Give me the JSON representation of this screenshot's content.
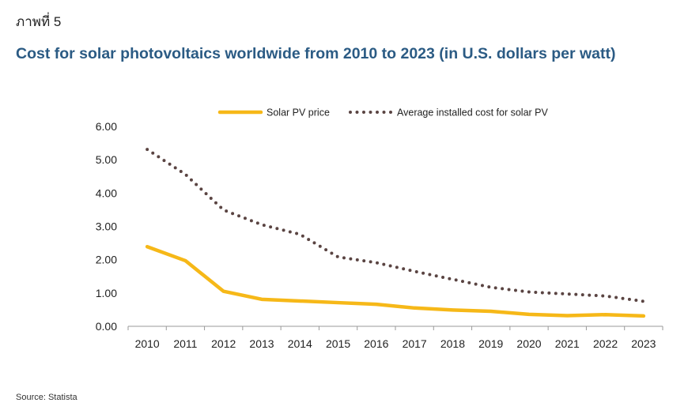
{
  "figure_label": "ภาพที่ 5",
  "title": "Cost for solar photovoltaics worldwide from 2010 to 2023 (in U.S. dollars per watt)",
  "source": "Source: Statista",
  "colors": {
    "title": "#2b5b84",
    "solar_pv_price": "#f6b818",
    "installed_cost": "#5a4442"
  },
  "chart_data": {
    "type": "line",
    "title": "Cost for solar photovoltaics worldwide from 2010 to 2023 (in U.S. dollars per watt)",
    "xlabel": "",
    "ylabel": "",
    "x": [
      "2010",
      "2011",
      "2012",
      "2013",
      "2014",
      "2015",
      "2016",
      "2017",
      "2018",
      "2019",
      "2020",
      "2021",
      "2022",
      "2023"
    ],
    "ylim": [
      0,
      6
    ],
    "yticks": [
      "0.00",
      "1.00",
      "2.00",
      "3.00",
      "4.00",
      "5.00",
      "6.00"
    ],
    "grid": false,
    "legend_position": "top",
    "series": [
      {
        "name": "Solar PV price",
        "style": "solid",
        "color": "#f6b818",
        "values": [
          2.39,
          1.97,
          1.05,
          0.81,
          0.76,
          0.71,
          0.66,
          0.55,
          0.49,
          0.45,
          0.36,
          0.32,
          0.35,
          0.31
        ]
      },
      {
        "name": "Average installed cost for solar PV",
        "style": "dotted",
        "color": "#5a4442",
        "values": [
          5.31,
          4.56,
          3.49,
          3.05,
          2.76,
          2.08,
          1.91,
          1.65,
          1.41,
          1.17,
          1.03,
          0.97,
          0.91,
          0.75
        ]
      }
    ]
  }
}
